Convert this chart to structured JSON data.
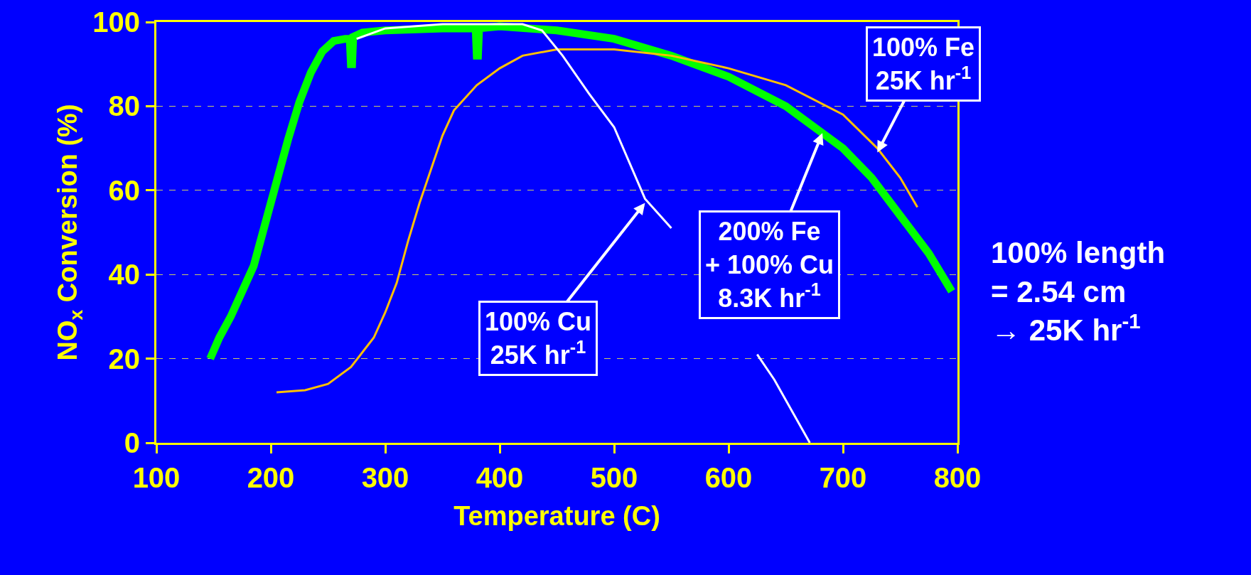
{
  "chart_data": {
    "type": "line",
    "xlabel": "Temperature (C)",
    "ylabel": "NO$_{x}$ Conversion (%)",
    "xlim": [
      100,
      800
    ],
    "ylim": [
      0,
      100
    ],
    "xticks": [
      100,
      200,
      300,
      400,
      500,
      600,
      700,
      800
    ],
    "yticks": [
      0,
      20,
      40,
      60,
      80,
      100
    ],
    "grid": "y",
    "marker": "none",
    "line_style": "solid",
    "series": [
      {
        "color": "#00ff00",
        "x": [
          147,
          155,
          165,
          175,
          185,
          195,
          205,
          215,
          225,
          235,
          245,
          255,
          265,
          269,
          270,
          271,
          272,
          280,
          300,
          350,
          379,
          380,
          381,
          382,
          400,
          450,
          500,
          550,
          600,
          650,
          700,
          725,
          750,
          775,
          795
        ],
        "values": [
          20,
          25,
          30,
          36,
          42,
          52,
          62,
          72,
          81,
          88,
          93,
          95.5,
          96,
          96,
          90,
          90,
          96.5,
          97.5,
          98,
          98.5,
          98.5,
          92,
          92,
          98.5,
          99,
          98,
          96,
          92,
          87,
          80,
          70,
          63,
          54,
          45,
          36
        ]
      },
      {
        "color": "#ffc000",
        "x": [
          205,
          230,
          250,
          270,
          290,
          300,
          310,
          320,
          330,
          340,
          350,
          360,
          380,
          400,
          420,
          450,
          500,
          550,
          600,
          650,
          700,
          730,
          750,
          765
        ],
        "values": [
          12,
          12.5,
          14,
          18,
          25,
          31,
          38,
          48,
          57,
          65,
          73,
          79,
          85,
          89,
          92,
          93.5,
          93.5,
          92,
          89,
          85,
          78,
          70,
          63,
          56
        ]
      },
      {
        "color": "#ffffff",
        "x": [
          275,
          300,
          350,
          400,
          420,
          437,
          455,
          478,
          500,
          527,
          550,
          560,
          600,
          625,
          640,
          671
        ],
        "values": [
          96,
          98.5,
          99.5,
          99.5,
          99.5,
          98,
          92,
          83,
          75,
          58,
          51,
          null,
          null,
          21,
          15,
          0
        ]
      }
    ],
    "annotations": [
      {
        "text": "100% Cu\n25K hr$^{-1}$",
        "x": 527,
        "y": 57
      },
      {
        "text": "100% Fe\n25K hr$^{-1}$",
        "x": 730,
        "y": 69
      },
      {
        "text": "200% Fe\n+ 100% Cu\n8.3K hr$^{-1}$",
        "x": 682,
        "y": 73.6
      },
      "100% length\n= 2.54 cm\n→ 25K hr$^{-1}$"
    ]
  }
}
